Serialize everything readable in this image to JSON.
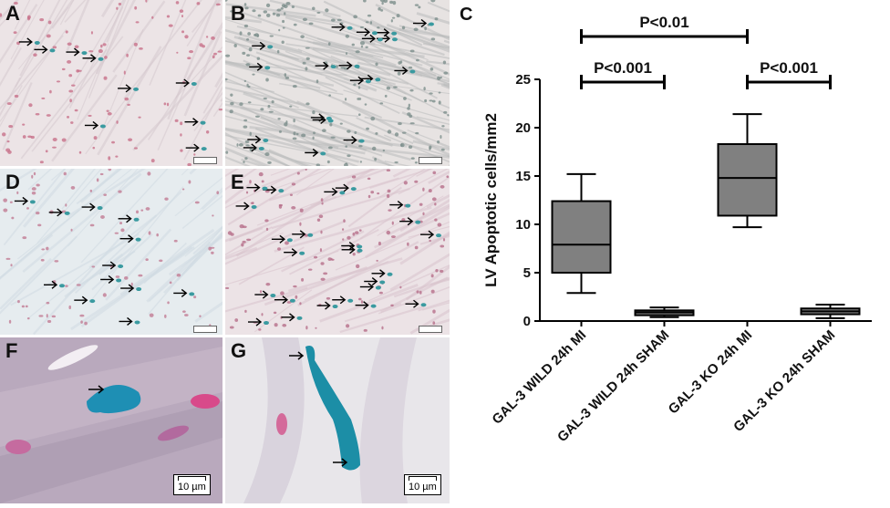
{
  "panels": {
    "A": {
      "label": "A",
      "arrow_count": 9
    },
    "B": {
      "label": "B",
      "arrow_count": 19
    },
    "D": {
      "label": "D",
      "arrow_count": 12
    },
    "E": {
      "label": "E",
      "arrow_count": 24
    },
    "F": {
      "label": "F",
      "scale": "10 µm"
    },
    "G": {
      "label": "G",
      "scale": "10 µm"
    }
  },
  "colors": {
    "tissue_pink": "#e9dde3",
    "stain_blue": "#3a9aa0",
    "box_fill": "#808080",
    "axis": "#000000"
  },
  "chart_data": {
    "panel_label": "C",
    "type": "box",
    "title": "",
    "ylabel": "LV Apoptotic cells/mm2",
    "ylim": [
      0,
      25
    ],
    "yticks": [
      0,
      5,
      10,
      15,
      20,
      25
    ],
    "categories": [
      "GAL-3 WILD 24h MI",
      "GAL-3 WILD 24h SHAM",
      "GAL-3 KO 24h MI",
      "GAL-3 KO 24h SHAM"
    ],
    "boxes": [
      {
        "min": 2.9,
        "q1": 5.0,
        "median": 7.9,
        "q3": 12.4,
        "max": 15.2
      },
      {
        "min": 0.4,
        "q1": 0.6,
        "median": 0.9,
        "q3": 1.1,
        "max": 1.4
      },
      {
        "min": 9.7,
        "q1": 10.9,
        "median": 14.8,
        "q3": 18.3,
        "max": 21.4
      },
      {
        "min": 0.3,
        "q1": 0.7,
        "median": 1.0,
        "q3": 1.3,
        "max": 1.7
      }
    ],
    "brackets": [
      {
        "from": 0,
        "to": 2,
        "text": "P<0.01",
        "level": 2
      },
      {
        "from": 0,
        "to": 1,
        "text": "P<0.001",
        "level": 1
      },
      {
        "from": 2,
        "to": 3,
        "text": "P<0.001",
        "level": 1
      }
    ]
  }
}
